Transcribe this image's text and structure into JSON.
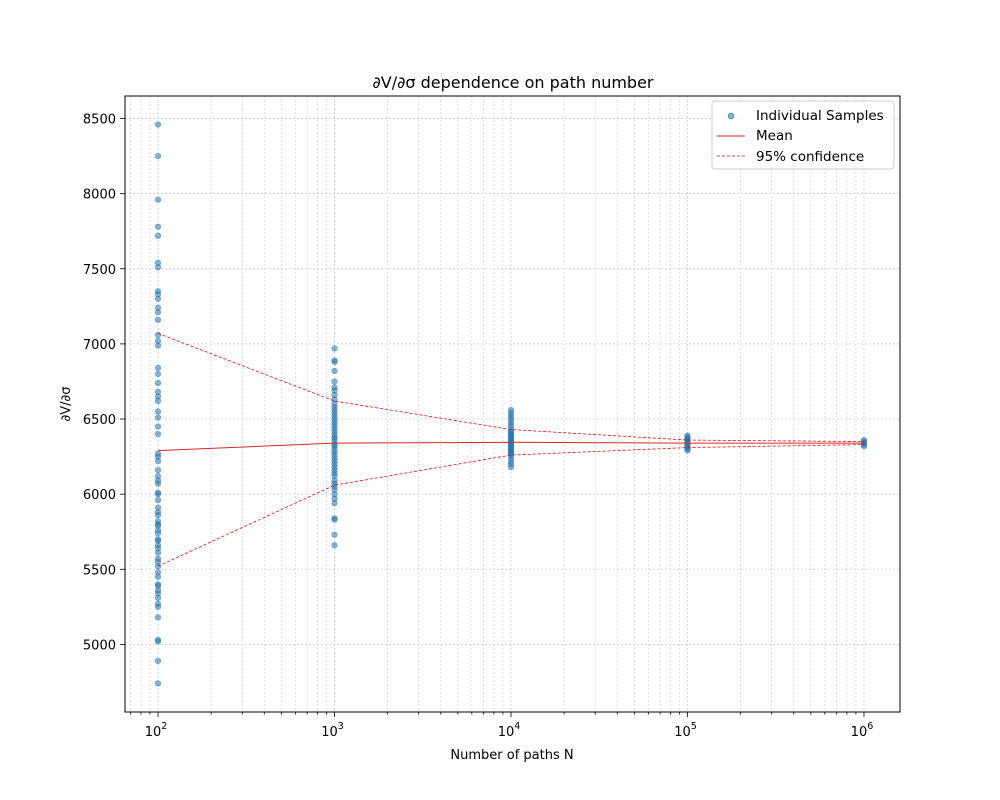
{
  "chart_data": {
    "type": "scatter",
    "title": "∂V/∂σ dependence on path number",
    "xlabel": "Number of paths N",
    "ylabel": "∂V/∂σ",
    "xscale": "log",
    "xlim": [
      65,
      1600000
    ],
    "ylim": [
      4550,
      8650
    ],
    "x_tick_labels": [
      "10",
      "10",
      "10",
      "10",
      "10"
    ],
    "x_tick_exponents": [
      "2",
      "3",
      "4",
      "5",
      "6"
    ],
    "x_tick_values": [
      100,
      1000,
      10000,
      100000,
      1000000
    ],
    "y_ticks": [
      5000,
      5500,
      6000,
      6500,
      7000,
      7500,
      8000,
      8500
    ],
    "grid": true,
    "legend_position": "top-right",
    "colors": {
      "samples": "#1f77b4",
      "mean": "#d62728",
      "confidence": "#ff0000"
    },
    "series": [
      {
        "name": "Individual Samples",
        "kind": "scatter",
        "points": [
          {
            "x": 100,
            "values": [
              4740,
              4890,
              5020,
              5030,
              5180,
              5250,
              5270,
              5310,
              5340,
              5360,
              5390,
              5400,
              5450,
              5480,
              5520,
              5550,
              5570,
              5610,
              5640,
              5660,
              5690,
              5700,
              5740,
              5760,
              5790,
              5800,
              5820,
              5860,
              5880,
              5910,
              5960,
              6000,
              6010,
              6070,
              6090,
              6120,
              6160,
              6220,
              6250,
              6270,
              6400,
              6450,
              6510,
              6550,
              6620,
              6650,
              6680,
              6740,
              6800,
              6840,
              6990,
              7020,
              7060,
              7160,
              7210,
              7240,
              7300,
              7330,
              7350,
              7510,
              7540,
              7720,
              7780,
              7960,
              8250,
              8460
            ]
          },
          {
            "x": 1000,
            "values": [
              5660,
              5730,
              5830,
              5840,
              5940,
              5970,
              6000,
              6030,
              6050,
              6070,
              6090,
              6120,
              6140,
              6160,
              6180,
              6200,
              6220,
              6240,
              6260,
              6280,
              6300,
              6320,
              6330,
              6350,
              6370,
              6380,
              6400,
              6420,
              6440,
              6460,
              6480,
              6500,
              6520,
              6540,
              6560,
              6580,
              6600,
              6630,
              6660,
              6690,
              6710,
              6750,
              6820,
              6880,
              6890,
              6970
            ]
          },
          {
            "x": 10000,
            "values": [
              6180,
              6200,
              6220,
              6240,
              6260,
              6270,
              6280,
              6290,
              6300,
              6310,
              6320,
              6330,
              6340,
              6350,
              6360,
              6370,
              6380,
              6390,
              6400,
              6410,
              6420,
              6440,
              6460,
              6480,
              6500,
              6520,
              6540,
              6560
            ]
          },
          {
            "x": 100000,
            "values": [
              6290,
              6300,
              6310,
              6320,
              6330,
              6340,
              6350,
              6360,
              6370,
              6380,
              6390
            ]
          },
          {
            "x": 1000000,
            "values": [
              6320,
              6330,
              6340,
              6350,
              6360
            ]
          }
        ]
      },
      {
        "name": "Mean",
        "kind": "line",
        "x": [
          100,
          1000,
          10000,
          100000,
          1000000
        ],
        "values": [
          6290,
          6340,
          6345,
          6340,
          6340
        ]
      },
      {
        "name": "95% confidence",
        "kind": "dashed-line",
        "x": [
          100,
          1000,
          10000,
          100000,
          1000000
        ],
        "upper": [
          7070,
          6620,
          6430,
          6360,
          6350
        ],
        "lower": [
          5520,
          6060,
          6260,
          6310,
          6330
        ]
      }
    ]
  }
}
